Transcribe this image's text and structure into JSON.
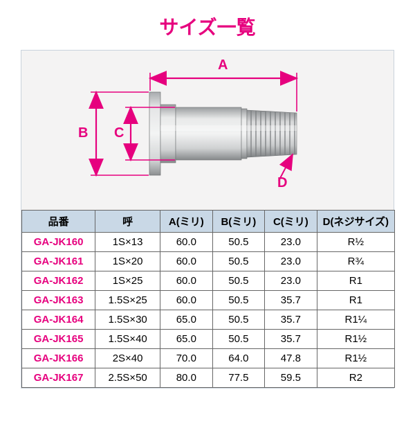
{
  "title": "サイズ一覧",
  "accent_color": "#e6007e",
  "header_bg": "#c9d8e6",
  "panel_bg": "#f4f3f3",
  "border_color": "#666666",
  "diagram": {
    "labels": {
      "A": "A",
      "B": "B",
      "C": "C",
      "D": "D"
    },
    "fitting": {
      "flange_color_light": "#d6d7d8",
      "flange_color_dark": "#9ea2a5",
      "body_highlight": "#eceded",
      "body_mid": "#c4c6c8",
      "body_shadow": "#8c8f91",
      "thread_light": "#d2d3d4",
      "thread_dark": "#8b8f91"
    }
  },
  "columns": [
    "品番",
    "呼",
    "A(ミリ)",
    "B(ミリ)",
    "C(ミリ)",
    "D(ネジサイズ)"
  ],
  "rows": [
    [
      "GA-JK160",
      "1S×13",
      "60.0",
      "50.5",
      "23.0",
      "R½"
    ],
    [
      "GA-JK161",
      "1S×20",
      "60.0",
      "50.5",
      "23.0",
      "R¾"
    ],
    [
      "GA-JK162",
      "1S×25",
      "60.0",
      "50.5",
      "23.0",
      "R1"
    ],
    [
      "GA-JK163",
      "1.5S×25",
      "60.0",
      "50.5",
      "35.7",
      "R1"
    ],
    [
      "GA-JK164",
      "1.5S×30",
      "65.0",
      "50.5",
      "35.7",
      "R1¼"
    ],
    [
      "GA-JK165",
      "1.5S×40",
      "65.0",
      "50.5",
      "35.7",
      "R1½"
    ],
    [
      "GA-JK166",
      "2S×40",
      "70.0",
      "64.0",
      "47.8",
      "R1½"
    ],
    [
      "GA-JK167",
      "2.5S×50",
      "80.0",
      "77.5",
      "59.5",
      "R2"
    ]
  ]
}
